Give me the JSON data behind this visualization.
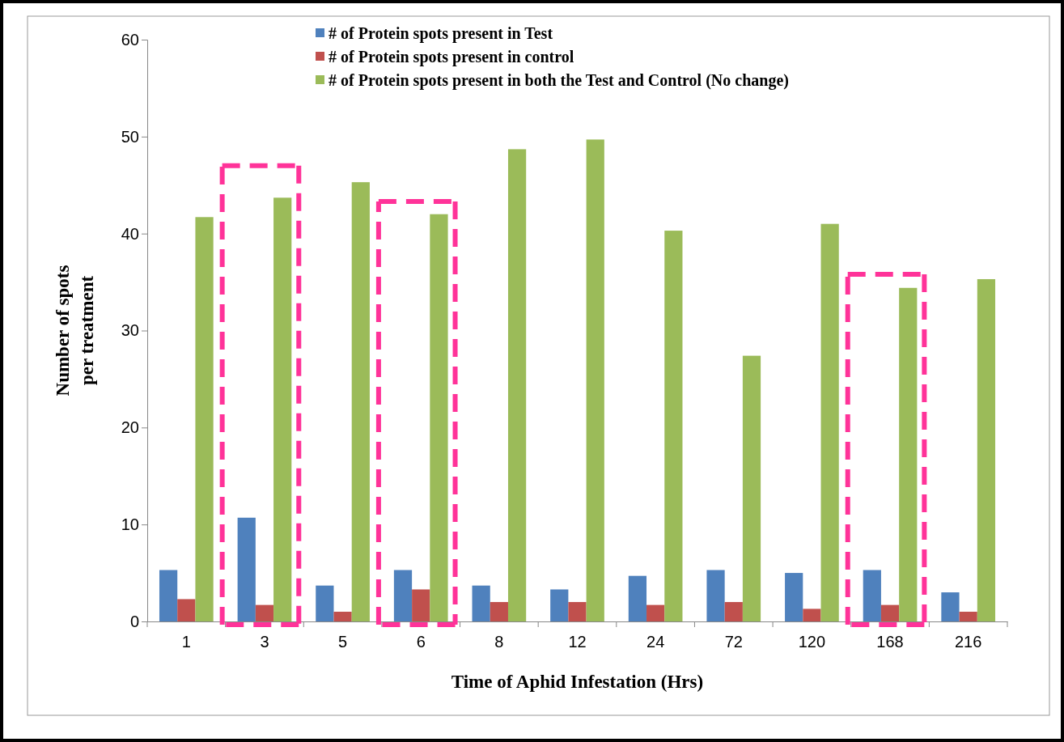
{
  "chart_data": {
    "type": "bar",
    "xlabel": "Time of Aphid Infestation (Hrs)",
    "ylabel": "Number of spots per treatment",
    "categories": [
      "1",
      "3",
      "5",
      "6",
      "8",
      "12",
      "24",
      "72",
      "120",
      "168",
      "216"
    ],
    "series": [
      {
        "name": "# of Protein spots present in Test",
        "color": "#4f81bd",
        "values": [
          5.3,
          10.7,
          3.7,
          5.3,
          3.7,
          3.3,
          4.7,
          5.3,
          5.0,
          5.3,
          3.0
        ]
      },
      {
        "name": "# of Protein spots present in control",
        "color": "#c0504d",
        "values": [
          2.3,
          1.7,
          1.0,
          3.3,
          2.0,
          2.0,
          1.7,
          2.0,
          1.3,
          1.7,
          1.0
        ]
      },
      {
        "name": "# of Protein spots present in both the Test and Control (No change)",
        "color": "#9bbb59",
        "values": [
          41.7,
          43.7,
          45.3,
          42.0,
          48.7,
          49.7,
          40.3,
          27.4,
          41.0,
          34.4,
          35.3
        ]
      }
    ],
    "ylim": [
      0,
      60
    ],
    "yticks": [
      0,
      10,
      20,
      30,
      40,
      50,
      60
    ],
    "grid": false,
    "legend": "top"
  }
}
